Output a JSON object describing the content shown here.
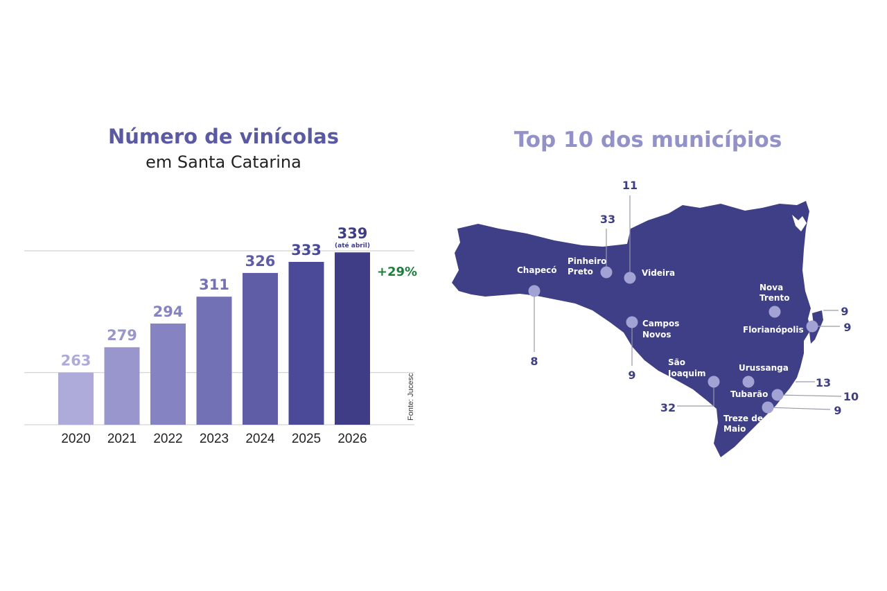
{
  "chart_data": [
    {
      "type": "bar",
      "title": "Número de vinícolas",
      "subtitle": "em Santa Catarina",
      "categories": [
        "2020",
        "2021",
        "2022",
        "2023",
        "2024",
        "2025",
        "2026"
      ],
      "values": [
        263,
        279,
        294,
        311,
        326,
        333,
        339
      ],
      "value_labels": [
        "263",
        "279",
        "294",
        "311",
        "326",
        "333",
        "339"
      ],
      "bar_colors": [
        "#aeabdb",
        "#9896cc",
        "#8583c1",
        "#7371b5",
        "#5f5da6",
        "#4b4a98",
        "#3e3d86"
      ],
      "label_colors": [
        "#aeabdb",
        "#9896cc",
        "#8583c1",
        "#7371b5",
        "#5f5da6",
        "#4b4a98",
        "#3e3d86"
      ],
      "note_2026": "(até abril)",
      "growth_label": "+29%",
      "growth_color": "#1d7f3c",
      "source": "Fonte: Jucesc",
      "ylim": [
        230,
        340
      ],
      "grid": true
    },
    {
      "type": "map",
      "title": "Top 10 dos municípios",
      "map_color": "#3e3f86",
      "marker_color": "#a3a2d4",
      "municipalities": [
        {
          "name": "Chapecó",
          "value": "8"
        },
        {
          "name": "Pinheiro Preto",
          "value": "33"
        },
        {
          "name": "Videira",
          "value": "11"
        },
        {
          "name": "Campos Novos",
          "value": "9"
        },
        {
          "name": "São Joaquim",
          "value": "32"
        },
        {
          "name": "Nova Trento",
          "value": "9"
        },
        {
          "name": "Florianópolis",
          "value": "9"
        },
        {
          "name": "Urussanga",
          "value": "13"
        },
        {
          "name": "Tubarão",
          "value": "10"
        },
        {
          "name": "Treze de Maio",
          "value": "9"
        }
      ]
    }
  ]
}
